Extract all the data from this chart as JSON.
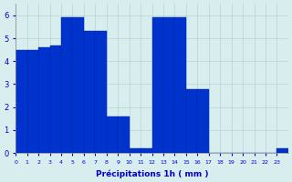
{
  "values": [
    4.5,
    4.5,
    4.6,
    4.7,
    5.9,
    5.9,
    5.3,
    5.3,
    1.6,
    1.6,
    0.2,
    0.2,
    5.9,
    5.9,
    5.9,
    2.8,
    2.8,
    0,
    0,
    0,
    0,
    0,
    0,
    0.2
  ],
  "bar_color": "#0033cc",
  "bar_edge_color": "#0022aa",
  "background_color": "#d8eeee",
  "grid_color": "#b8d4d4",
  "xlabel": "Précipitations 1h ( mm )",
  "xlabel_color": "#0000cc",
  "tick_color": "#0000cc",
  "ylim": [
    0,
    6.5
  ],
  "yticks": [
    0,
    1,
    2,
    3,
    4,
    5,
    6
  ],
  "xtick_labels": [
    "0",
    "1",
    "2",
    "3",
    "4",
    "5",
    "6",
    "7",
    "8",
    "9",
    "10",
    "11",
    "12",
    "13",
    "14",
    "15",
    "16",
    "17",
    "18",
    "19",
    "20",
    "21",
    "22",
    "23"
  ],
  "num_bins": 24
}
